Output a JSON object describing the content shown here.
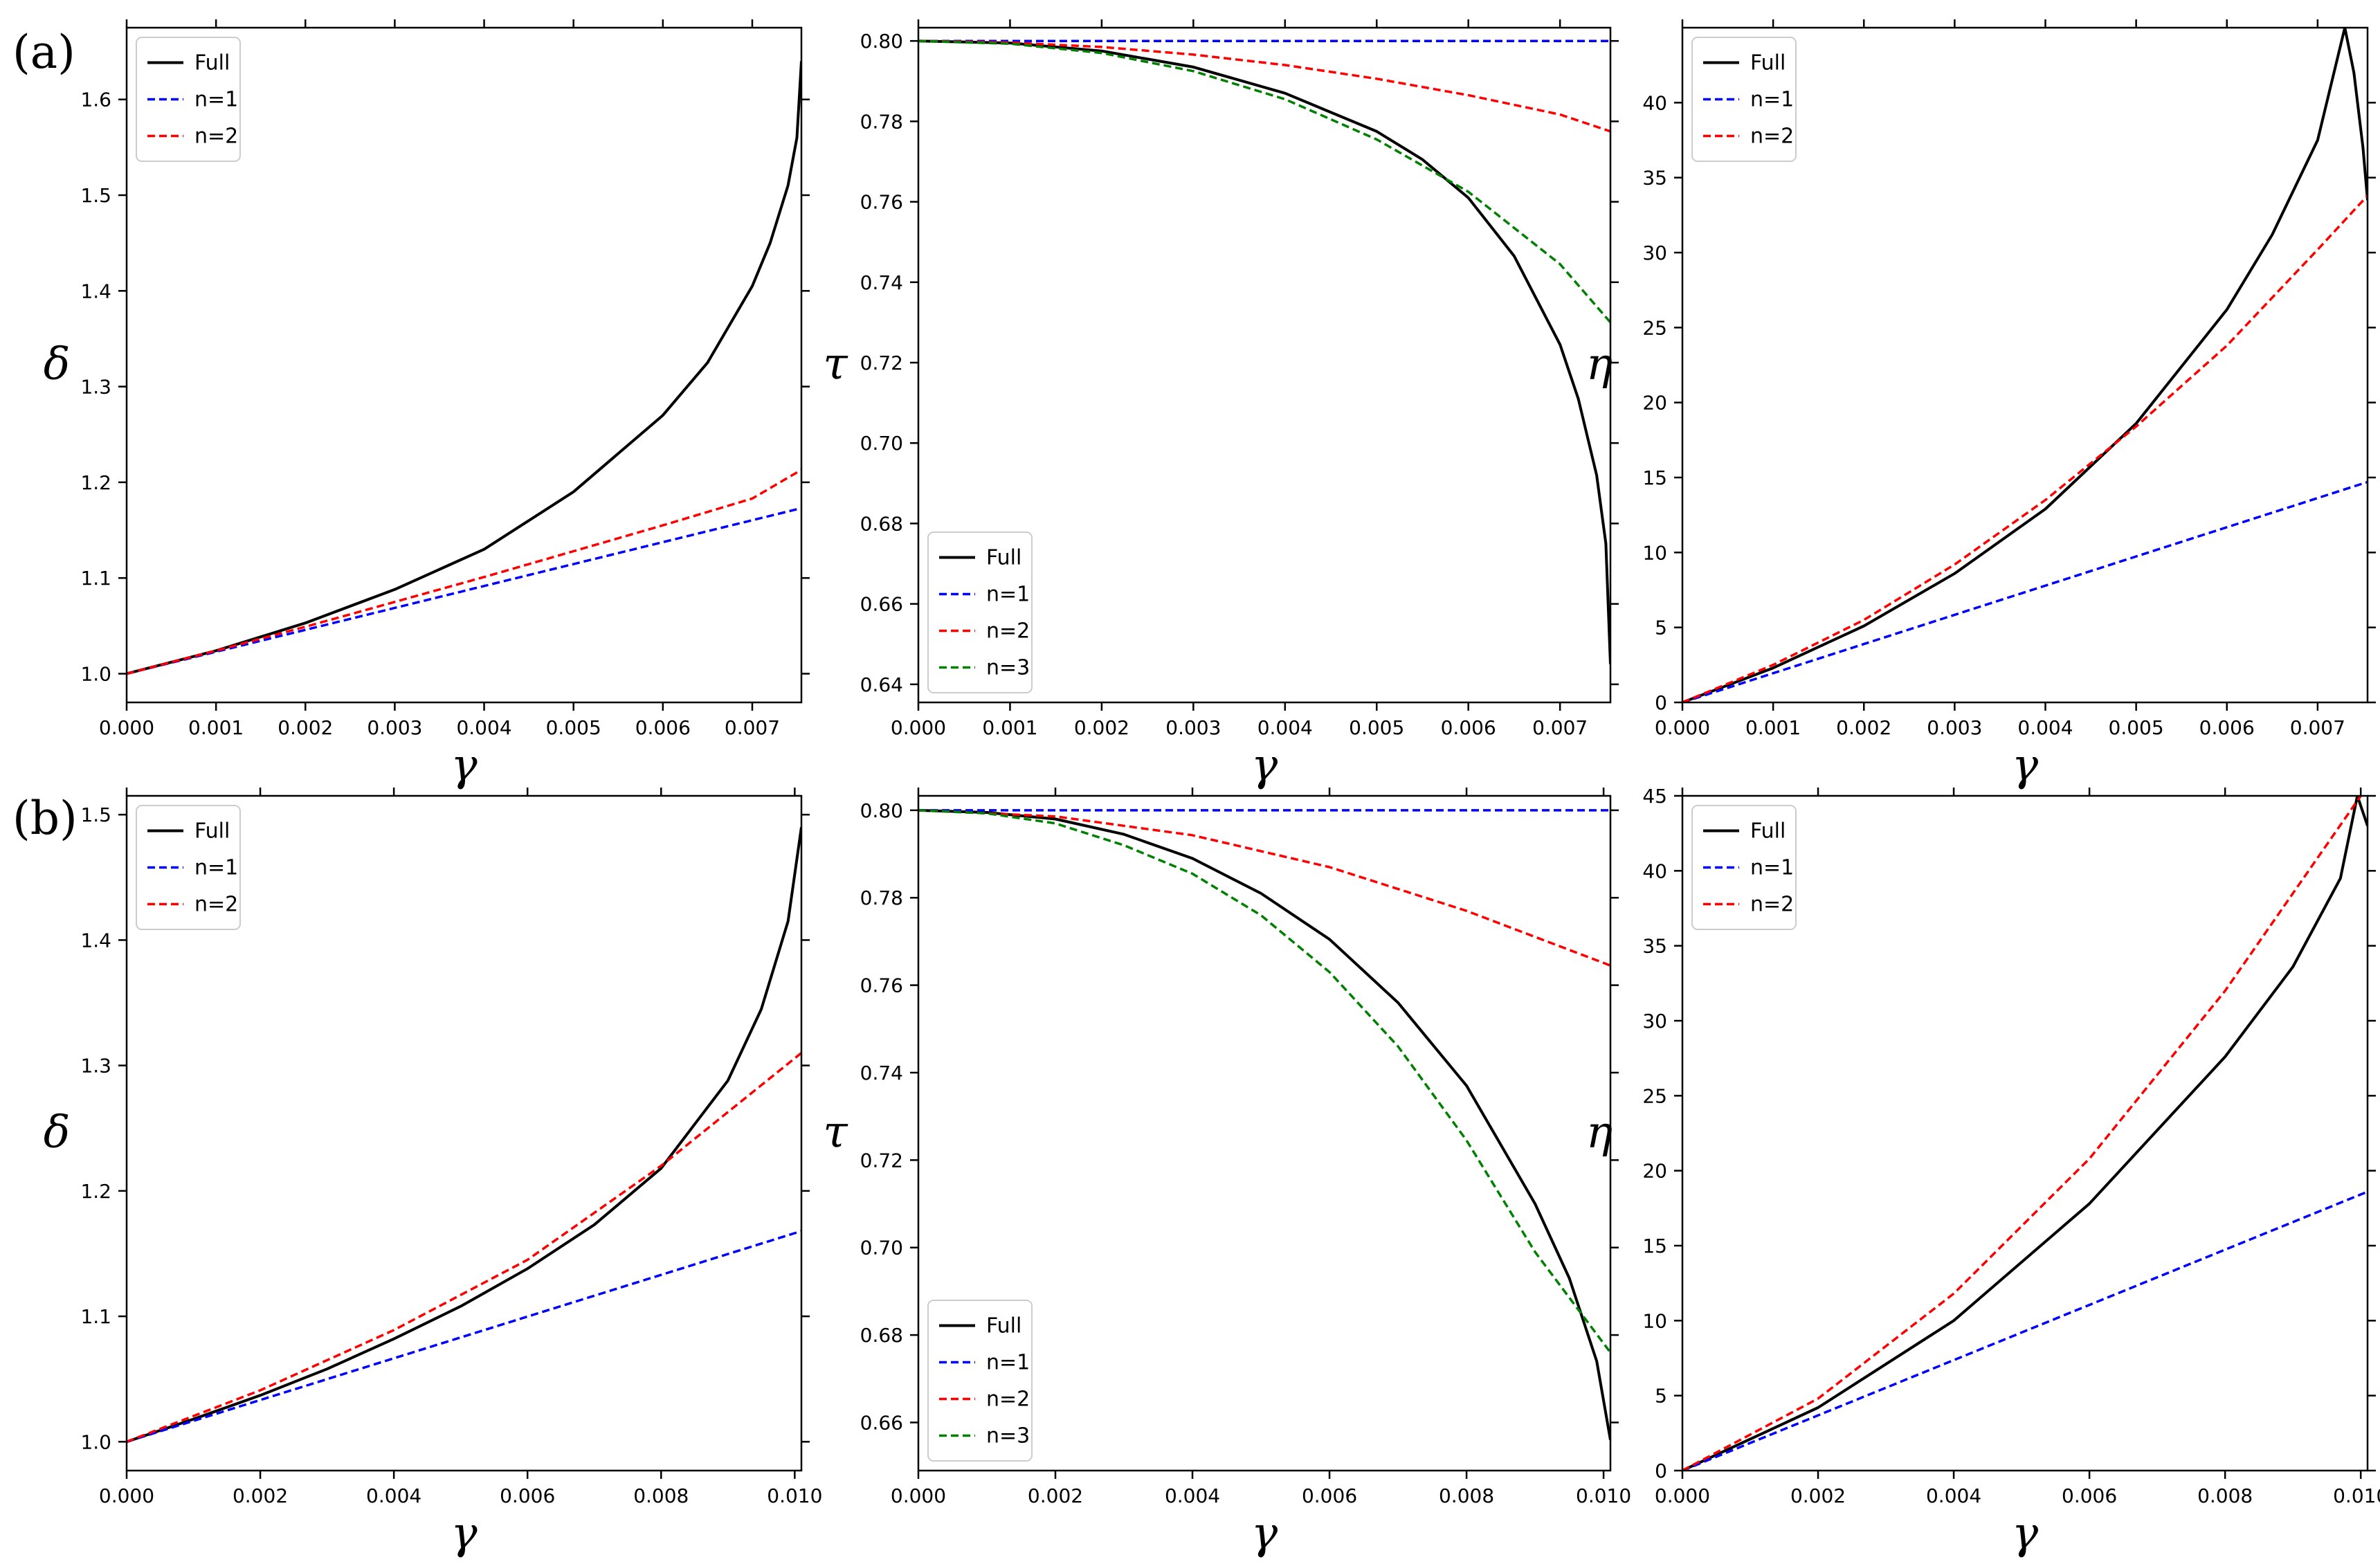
{
  "figure": {
    "row_labels": [
      "(a)",
      "(b)"
    ]
  },
  "chart_data": [
    {
      "id": "a-delta",
      "row": 0,
      "col": 0,
      "type": "line",
      "xlabel": "γ",
      "ylabel": "δ",
      "xlim": [
        0,
        0.00755
      ],
      "ylim": [
        0.97,
        1.675
      ],
      "xticks": [
        0,
        0.001,
        0.002,
        0.003,
        0.004,
        0.005,
        0.006,
        0.007
      ],
      "xtick_labels": [
        "0.000",
        "0.001",
        "0.002",
        "0.003",
        "0.004",
        "0.005",
        "0.006",
        "0.007"
      ],
      "yticks": [
        1.0,
        1.1,
        1.2,
        1.3,
        1.4,
        1.5,
        1.6
      ],
      "ytick_labels": [
        "1.0",
        "1.1",
        "1.2",
        "1.3",
        "1.4",
        "1.5",
        "1.6"
      ],
      "legend_position": "upper-left",
      "series": [
        {
          "name": "Full",
          "color": "#000000",
          "style": "solid",
          "x": [
            0,
            0.001,
            0.002,
            0.003,
            0.004,
            0.005,
            0.006,
            0.0065,
            0.007,
            0.0072,
            0.0074,
            0.0075,
            0.00755
          ],
          "y": [
            1.0,
            1.024,
            1.053,
            1.088,
            1.13,
            1.19,
            1.27,
            1.325,
            1.405,
            1.45,
            1.51,
            1.56,
            1.64
          ]
        },
        {
          "name": "n=1",
          "color": "#0000ff",
          "style": "dashed",
          "x": [
            0,
            0.00755
          ],
          "y": [
            1.0,
            1.173
          ]
        },
        {
          "name": "n=2",
          "color": "#ff0000",
          "style": "dashed",
          "x": [
            0,
            0.001,
            0.002,
            0.003,
            0.004,
            0.005,
            0.006,
            0.007,
            0.00755
          ],
          "y": [
            1.0,
            1.024,
            1.049,
            1.075,
            1.101,
            1.128,
            1.155,
            1.183,
            1.213
          ]
        }
      ]
    },
    {
      "id": "a-tau",
      "row": 0,
      "col": 1,
      "type": "line",
      "xlabel": "γ",
      "ylabel": "τ",
      "xlim": [
        0,
        0.00755
      ],
      "ylim": [
        0.6355,
        0.8033
      ],
      "xticks": [
        0,
        0.001,
        0.002,
        0.003,
        0.004,
        0.005,
        0.006,
        0.007
      ],
      "xtick_labels": [
        "0.000",
        "0.001",
        "0.002",
        "0.003",
        "0.004",
        "0.005",
        "0.006",
        "0.007"
      ],
      "yticks": [
        0.64,
        0.66,
        0.68,
        0.7,
        0.72,
        0.74,
        0.76,
        0.78,
        0.8
      ],
      "ytick_labels": [
        "0.64",
        "0.66",
        "0.68",
        "0.70",
        "0.72",
        "0.74",
        "0.76",
        "0.78",
        "0.80"
      ],
      "legend_position": "lower-left",
      "series": [
        {
          "name": "Full",
          "color": "#000000",
          "style": "solid",
          "x": [
            0,
            0.001,
            0.002,
            0.003,
            0.004,
            0.005,
            0.0055,
            0.006,
            0.0065,
            0.007,
            0.0072,
            0.0074,
            0.0075,
            0.00755
          ],
          "y": [
            0.8,
            0.7995,
            0.7975,
            0.7935,
            0.787,
            0.7775,
            0.7705,
            0.761,
            0.7465,
            0.7245,
            0.711,
            0.692,
            0.675,
            0.645
          ]
        },
        {
          "name": "n=1",
          "color": "#0000ff",
          "style": "dashed",
          "x": [
            0,
            0.00755
          ],
          "y": [
            0.8,
            0.8
          ]
        },
        {
          "name": "n=2",
          "color": "#ff0000",
          "style": "dashed",
          "x": [
            0,
            0.001,
            0.002,
            0.003,
            0.004,
            0.005,
            0.006,
            0.007,
            0.00755
          ],
          "y": [
            0.8,
            0.7996,
            0.7985,
            0.7966,
            0.794,
            0.7906,
            0.7865,
            0.7817,
            0.7775
          ]
        },
        {
          "name": "n=3",
          "color": "#008000",
          "style": "dashed",
          "x": [
            0,
            0.001,
            0.002,
            0.003,
            0.004,
            0.005,
            0.006,
            0.007,
            0.00755
          ],
          "y": [
            0.8,
            0.7993,
            0.797,
            0.7925,
            0.7855,
            0.7755,
            0.7625,
            0.7445,
            0.73
          ]
        }
      ]
    },
    {
      "id": "a-eta",
      "row": 0,
      "col": 2,
      "type": "line",
      "xlabel": "γ",
      "ylabel": "η",
      "xlim": [
        0,
        0.00755
      ],
      "ylim": [
        0,
        45
      ],
      "xticks": [
        0,
        0.001,
        0.002,
        0.003,
        0.004,
        0.005,
        0.006,
        0.007
      ],
      "xtick_labels": [
        "0.000",
        "0.001",
        "0.002",
        "0.003",
        "0.004",
        "0.005",
        "0.006",
        "0.007"
      ],
      "yticks": [
        0,
        5,
        10,
        15,
        20,
        25,
        30,
        35,
        40
      ],
      "ytick_labels": [
        "0",
        "5",
        "10",
        "15",
        "20",
        "25",
        "30",
        "35",
        "40"
      ],
      "legend_position": "upper-left",
      "series": [
        {
          "name": "Full",
          "color": "#000000",
          "style": "solid",
          "x": [
            0,
            0.001,
            0.002,
            0.003,
            0.004,
            0.005,
            0.006,
            0.0065,
            0.007,
            0.0073,
            0.0074,
            0.0075,
            0.00755
          ],
          "y": [
            0,
            2.3,
            5.1,
            8.6,
            12.9,
            18.6,
            26.2,
            31.2,
            37.5,
            45.0,
            42.0,
            37.0,
            33.5
          ]
        },
        {
          "name": "n=1",
          "color": "#0000ff",
          "style": "dashed",
          "x": [
            0,
            0.00755
          ],
          "y": [
            0,
            14.7
          ]
        },
        {
          "name": "n=2",
          "color": "#ff0000",
          "style": "dashed",
          "x": [
            0,
            0.001,
            0.002,
            0.003,
            0.004,
            0.005,
            0.006,
            0.007,
            0.00755
          ],
          "y": [
            0,
            2.5,
            5.5,
            9.2,
            13.5,
            18.4,
            23.8,
            30.2,
            33.8
          ]
        }
      ]
    },
    {
      "id": "b-delta",
      "row": 1,
      "col": 0,
      "type": "line",
      "xlabel": "γ",
      "ylabel": "δ",
      "xlim": [
        0,
        0.0101
      ],
      "ylim": [
        0.977,
        1.515
      ],
      "xticks": [
        0,
        0.002,
        0.004,
        0.006,
        0.008,
        0.01
      ],
      "xtick_labels": [
        "0.000",
        "0.002",
        "0.004",
        "0.006",
        "0.008",
        "0.010"
      ],
      "yticks": [
        1.0,
        1.1,
        1.2,
        1.3,
        1.4,
        1.5
      ],
      "ytick_labels": [
        "1.0",
        "1.1",
        "1.2",
        "1.3",
        "1.4",
        "1.5"
      ],
      "legend_position": "upper-left",
      "series": [
        {
          "name": "Full",
          "color": "#000000",
          "style": "solid",
          "x": [
            0,
            0.001,
            0.002,
            0.003,
            0.004,
            0.005,
            0.006,
            0.007,
            0.008,
            0.009,
            0.0095,
            0.0099,
            0.0101
          ],
          "y": [
            1.0,
            1.018,
            1.037,
            1.058,
            1.082,
            1.108,
            1.138,
            1.173,
            1.218,
            1.288,
            1.345,
            1.415,
            1.49
          ]
        },
        {
          "name": "n=1",
          "color": "#0000ff",
          "style": "dashed",
          "x": [
            0,
            0.0101
          ],
          "y": [
            1.0,
            1.168
          ]
        },
        {
          "name": "n=2",
          "color": "#ff0000",
          "style": "dashed",
          "x": [
            0,
            0.002,
            0.004,
            0.006,
            0.008,
            0.0101
          ],
          "y": [
            1.0,
            1.041,
            1.089,
            1.145,
            1.22,
            1.31
          ]
        }
      ]
    },
    {
      "id": "b-tau",
      "row": 1,
      "col": 1,
      "type": "line",
      "xlabel": "γ",
      "ylabel": "τ",
      "xlim": [
        0,
        0.0101
      ],
      "ylim": [
        0.649,
        0.8033
      ],
      "xticks": [
        0,
        0.002,
        0.004,
        0.006,
        0.008,
        0.01
      ],
      "xtick_labels": [
        "0.000",
        "0.002",
        "0.004",
        "0.006",
        "0.008",
        "0.010"
      ],
      "yticks": [
        0.66,
        0.68,
        0.7,
        0.72,
        0.74,
        0.76,
        0.78,
        0.8
      ],
      "ytick_labels": [
        "0.66",
        "0.68",
        "0.70",
        "0.72",
        "0.74",
        "0.76",
        "0.78",
        "0.80"
      ],
      "legend_position": "lower-left",
      "series": [
        {
          "name": "Full",
          "color": "#000000",
          "style": "solid",
          "x": [
            0,
            0.001,
            0.002,
            0.003,
            0.004,
            0.005,
            0.006,
            0.007,
            0.008,
            0.009,
            0.0095,
            0.0099,
            0.0101
          ],
          "y": [
            0.8,
            0.7995,
            0.798,
            0.7945,
            0.789,
            0.781,
            0.7705,
            0.756,
            0.737,
            0.71,
            0.693,
            0.674,
            0.656
          ]
        },
        {
          "name": "n=1",
          "color": "#0000ff",
          "style": "dashed",
          "x": [
            0,
            0.0101
          ],
          "y": [
            0.8,
            0.8
          ]
        },
        {
          "name": "n=2",
          "color": "#ff0000",
          "style": "dashed",
          "x": [
            0,
            0.002,
            0.004,
            0.006,
            0.008,
            0.0101
          ],
          "y": [
            0.8,
            0.7986,
            0.7943,
            0.787,
            0.777,
            0.7645
          ]
        },
        {
          "name": "n=3",
          "color": "#008000",
          "style": "dashed",
          "x": [
            0,
            0.001,
            0.002,
            0.003,
            0.004,
            0.005,
            0.006,
            0.007,
            0.008,
            0.009,
            0.0101
          ],
          "y": [
            0.8,
            0.7993,
            0.797,
            0.792,
            0.7855,
            0.776,
            0.763,
            0.746,
            0.7245,
            0.699,
            0.676
          ]
        }
      ]
    },
    {
      "id": "b-eta",
      "row": 1,
      "col": 2,
      "type": "line",
      "xlabel": "γ",
      "ylabel": "η",
      "xlim": [
        0,
        0.0101
      ],
      "ylim": [
        0,
        45
      ],
      "xticks": [
        0,
        0.002,
        0.004,
        0.006,
        0.008,
        0.01
      ],
      "xtick_labels": [
        "0.000",
        "0.002",
        "0.004",
        "0.006",
        "0.008",
        "0.010"
      ],
      "yticks": [
        0,
        5,
        10,
        15,
        20,
        25,
        30,
        35,
        40,
        45
      ],
      "ytick_labels": [
        "0",
        "5",
        "10",
        "15",
        "20",
        "25",
        "30",
        "35",
        "40",
        "45"
      ],
      "legend_position": "upper-left",
      "series": [
        {
          "name": "Full",
          "color": "#000000",
          "style": "solid",
          "x": [
            0,
            0.002,
            0.004,
            0.006,
            0.008,
            0.009,
            0.0097,
            0.00995,
            0.0101
          ],
          "y": [
            0,
            4.2,
            10.0,
            17.8,
            27.6,
            33.6,
            39.5,
            45.0,
            43.0
          ]
        },
        {
          "name": "n=1",
          "color": "#0000ff",
          "style": "dashed",
          "x": [
            0,
            0.0101
          ],
          "y": [
            0,
            18.6
          ]
        },
        {
          "name": "n=2",
          "color": "#ff0000",
          "style": "dashed",
          "x": [
            0,
            0.002,
            0.004,
            0.006,
            0.008,
            0.01
          ],
          "y": [
            0,
            4.8,
            11.8,
            20.8,
            32.0,
            45.0
          ]
        }
      ]
    }
  ]
}
